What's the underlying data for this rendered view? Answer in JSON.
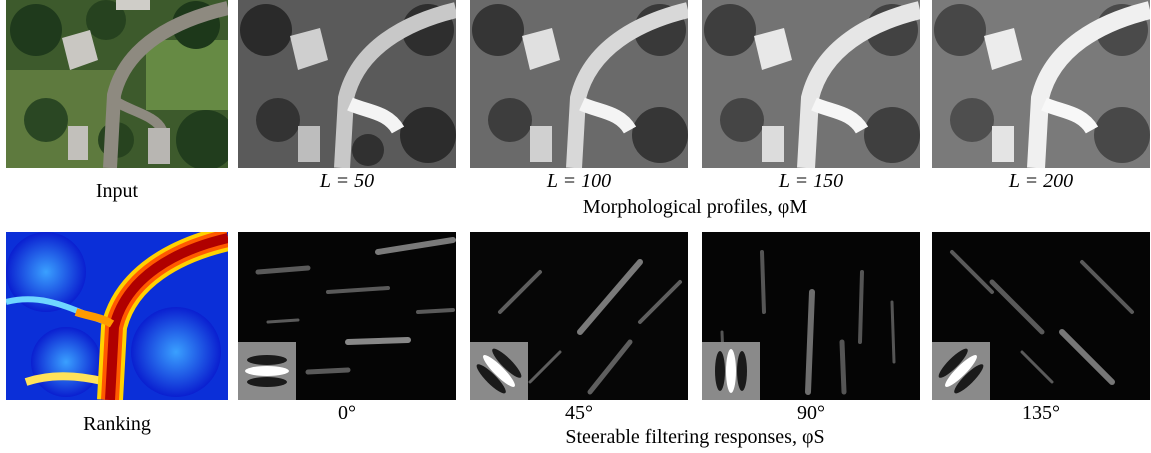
{
  "row1": {
    "input_caption": "Input",
    "profile_captions": [
      "L = 50",
      "L = 100",
      "L = 150",
      "L = 200"
    ],
    "group_caption": "Morphological profiles, φM"
  },
  "row2": {
    "ranking_caption": "Ranking",
    "angle_captions": [
      "0°",
      "45°",
      "90°",
      "135°"
    ],
    "group_caption": "Steerable filtering responses, φS"
  }
}
